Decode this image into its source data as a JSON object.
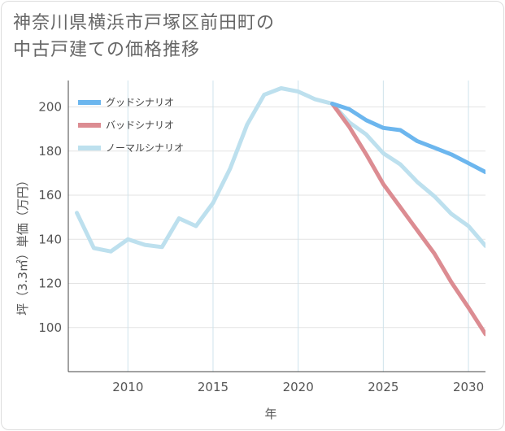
{
  "chart_data": {
    "type": "line",
    "title_lines": [
      "神奈川県横浜市戸塚区前田町の",
      "中古戸建ての価格推移"
    ],
    "xlabel": "年",
    "ylabel": "坪（3.3㎡）単価（万円）",
    "xlim": [
      2006.5,
      2031
    ],
    "ylim": [
      80,
      212
    ],
    "x_ticks": [
      2010,
      2015,
      2020,
      2025,
      2030
    ],
    "y_ticks": [
      100,
      120,
      140,
      160,
      180,
      200
    ],
    "grid": true,
    "legend_position": "top-left",
    "series": [
      {
        "name": "グッドシナリオ",
        "color": "#6cb6ee",
        "x": [
          2022,
          2023,
          2024,
          2025,
          2026,
          2027,
          2028,
          2029,
          2030,
          2031
        ],
        "y": [
          201.5,
          199,
          194,
          190.5,
          189.5,
          184.5,
          181.5,
          178.5,
          174.5,
          170.5
        ]
      },
      {
        "name": "バッドシナリオ",
        "color": "#dc8c92",
        "x": [
          2022,
          2023,
          2024,
          2025,
          2026,
          2027,
          2028,
          2029,
          2030,
          2031
        ],
        "y": [
          201.5,
          191,
          178.5,
          165,
          154.5,
          144,
          133.5,
          120.5,
          109,
          97
        ]
      },
      {
        "name": "ノーマルシナリオ",
        "color": "#bde0ee",
        "x": [
          2007,
          2008,
          2009,
          2010,
          2011,
          2012,
          2013,
          2014,
          2015,
          2016,
          2017,
          2018,
          2019,
          2020,
          2021,
          2022,
          2023,
          2024,
          2025,
          2026,
          2027,
          2028,
          2029,
          2030,
          2031
        ],
        "y": [
          152,
          136,
          134.5,
          140,
          137.5,
          136.5,
          149.5,
          146,
          156.5,
          172,
          192,
          205.5,
          208.5,
          207,
          203.5,
          201.5,
          193,
          187.5,
          179,
          174,
          166,
          159.5,
          151.5,
          146,
          137
        ]
      }
    ]
  }
}
